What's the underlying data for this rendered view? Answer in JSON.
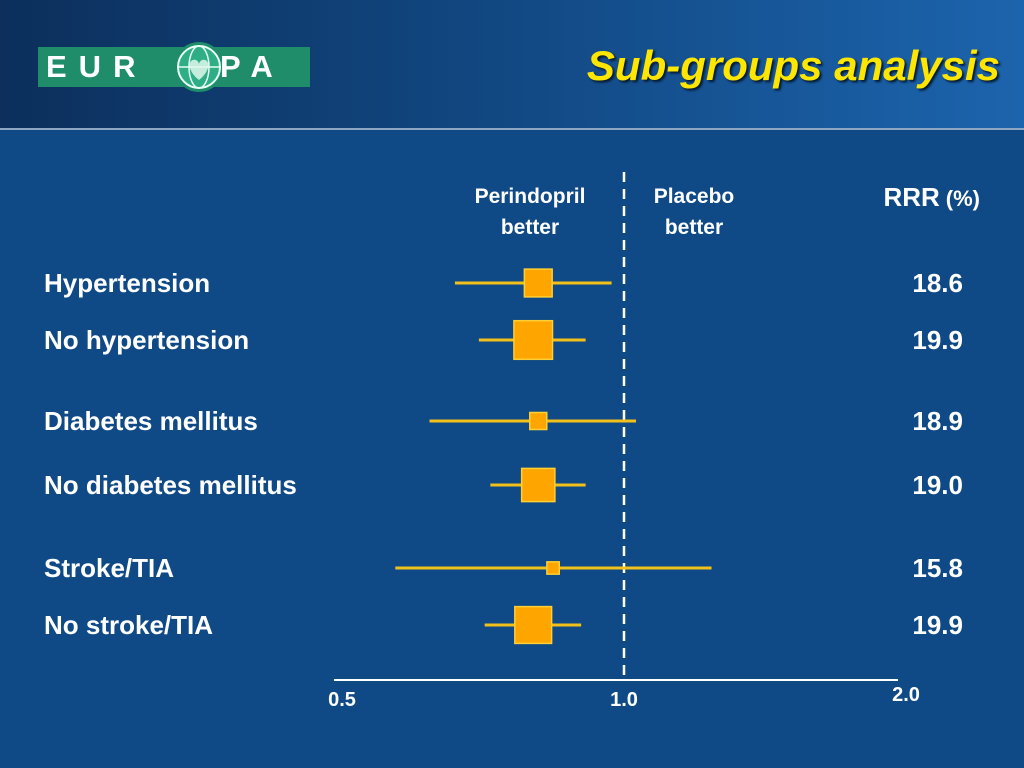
{
  "header": {
    "logo_left": "EUR",
    "logo_right": "PA",
    "title": "Sub-groups analysis"
  },
  "colors": {
    "background": "#0f4a86",
    "title": "#ffe600",
    "marker": "#ffa500",
    "ci_line": "#f2c01a",
    "text": "#ffffff",
    "logo_green": "#1f8c6a"
  },
  "chart_data": {
    "type": "forest",
    "x_scale": "log",
    "xlim": [
      0.5,
      2.0
    ],
    "xticks": [
      "0.5",
      "1.0",
      "2.0"
    ],
    "reference_line": 1.0,
    "left_heading": [
      "Perindopril",
      "better"
    ],
    "right_heading": [
      "Placebo",
      "better"
    ],
    "value_heading": "RRR",
    "value_unit": "(%)",
    "rows": [
      {
        "label": "Hypertension",
        "rrr": "18.6",
        "estimate": 0.81,
        "ci_low": 0.66,
        "ci_high": 0.97,
        "weight": 0.55
      },
      {
        "label": "No hypertension",
        "rrr": "19.9",
        "estimate": 0.8,
        "ci_low": 0.7,
        "ci_high": 0.91,
        "weight": 0.85
      },
      {
        "label": "Diabetes mellitus",
        "rrr": "18.9",
        "estimate": 0.81,
        "ci_low": 0.62,
        "ci_high": 1.03,
        "weight": 0.25
      },
      {
        "label": "No diabetes mellitus",
        "rrr": "19.0",
        "estimate": 0.81,
        "ci_low": 0.72,
        "ci_high": 0.91,
        "weight": 0.7
      },
      {
        "label": "Stroke/TIA",
        "rrr": "15.8",
        "estimate": 0.84,
        "ci_low": 0.57,
        "ci_high": 1.24,
        "weight": 0.12
      },
      {
        "label": "No stroke/TIA",
        "rrr": "19.9",
        "estimate": 0.8,
        "ci_low": 0.71,
        "ci_high": 0.9,
        "weight": 0.8
      }
    ]
  }
}
